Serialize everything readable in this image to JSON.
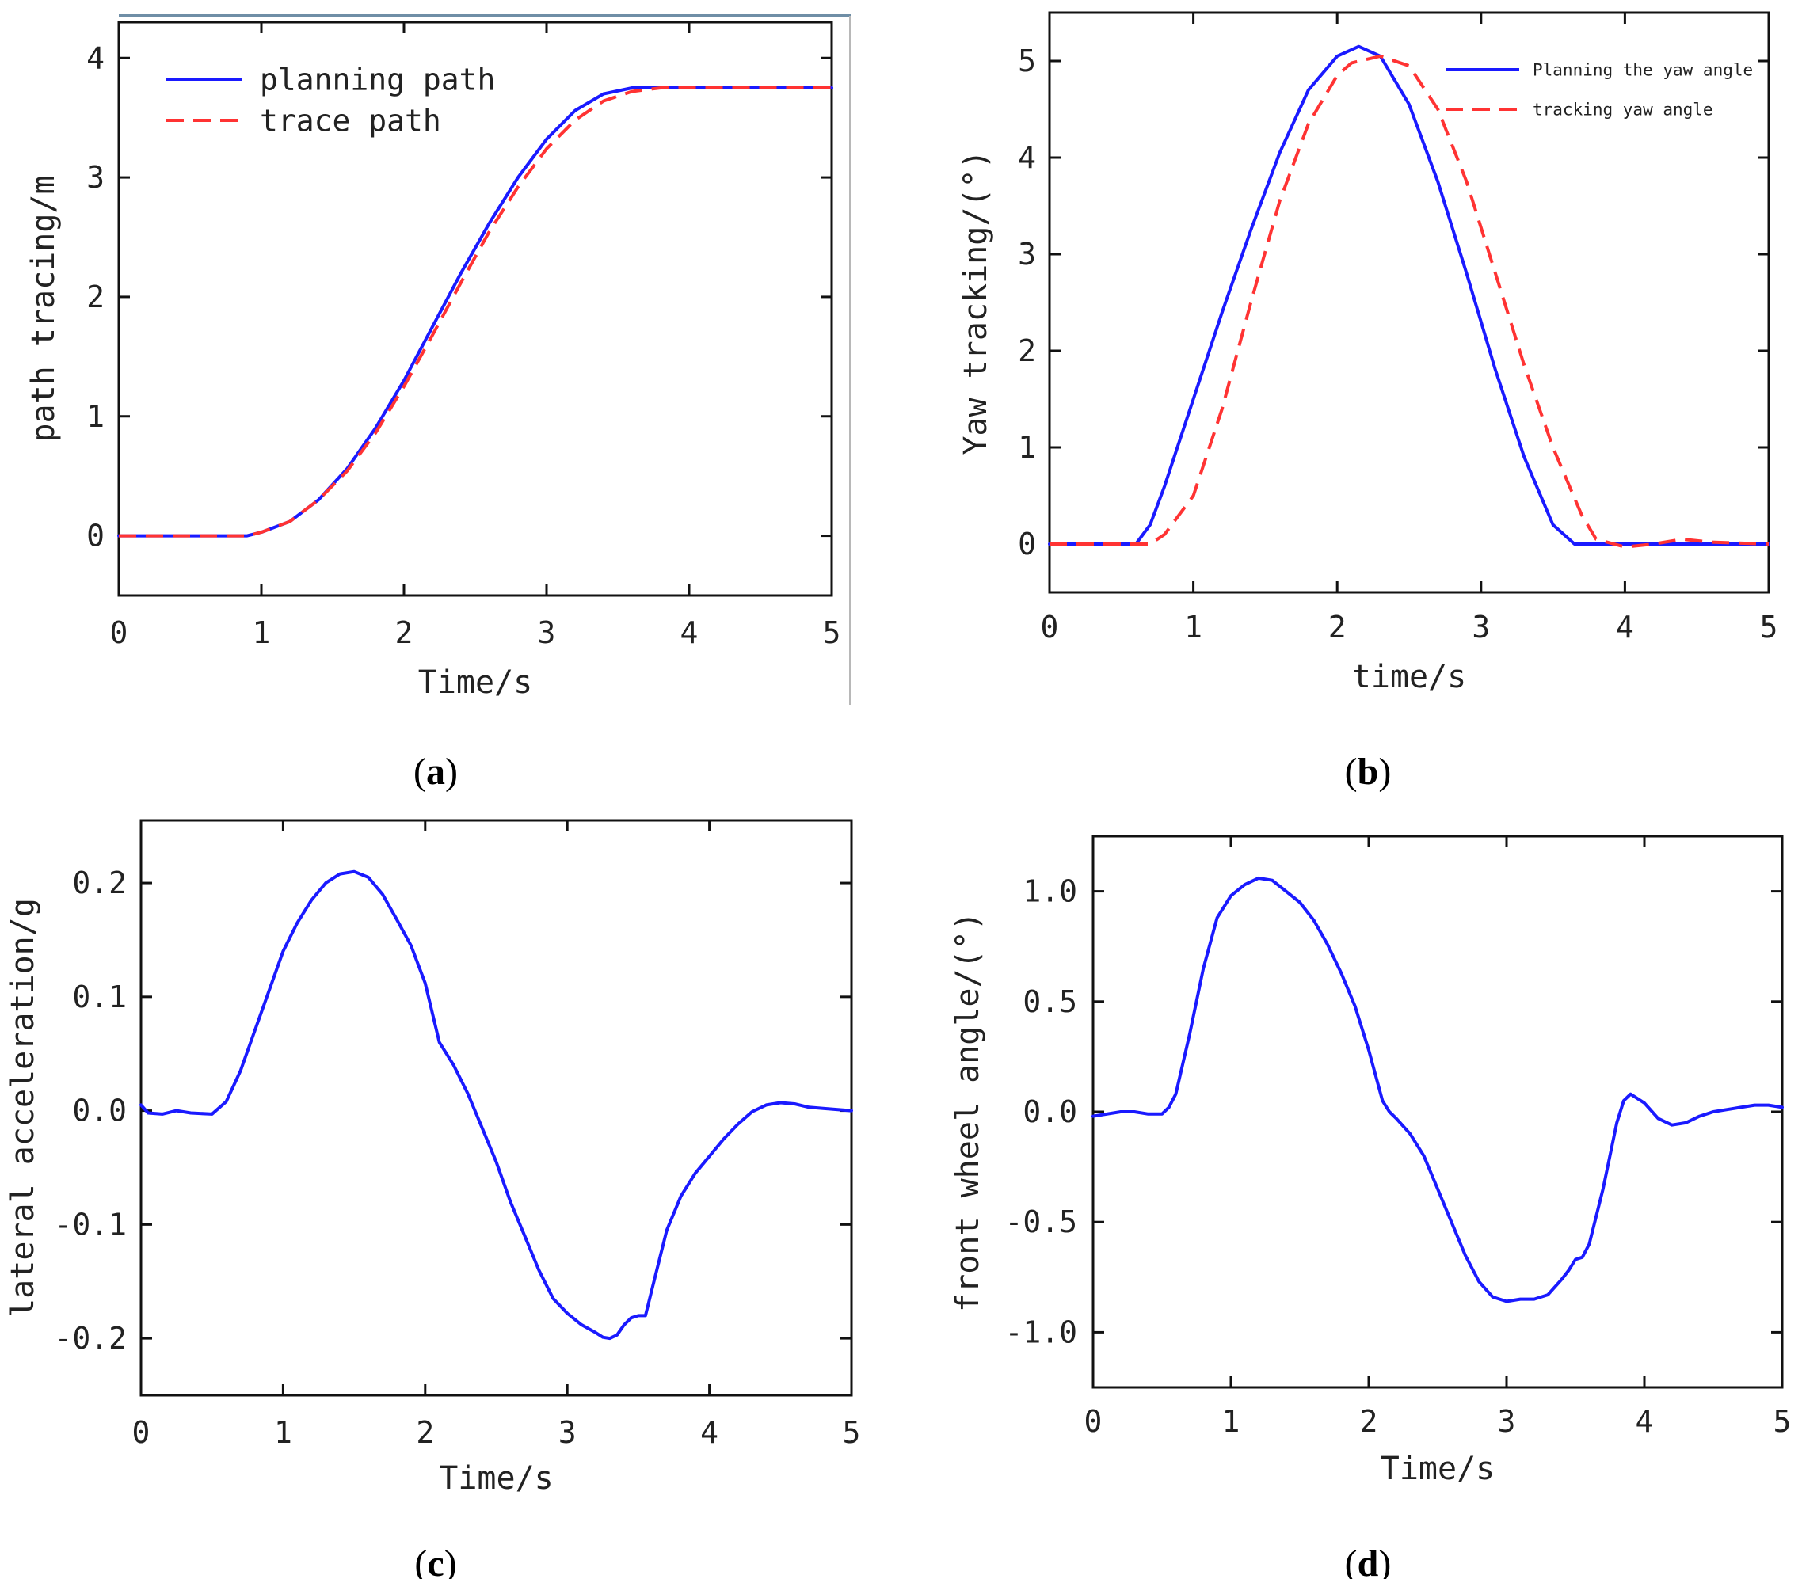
{
  "figure": {
    "colors": {
      "planning": "#1a1aff",
      "trace": "#ff3333",
      "axis": "#111111"
    },
    "panels": [
      {
        "id": "a",
        "caption_letter": "a",
        "chart_data": {
          "type": "line",
          "title": "",
          "xlabel": "Time/s",
          "ylabel": "path tracing/m",
          "xlim": [
            0,
            5
          ],
          "ylim": [
            -0.5,
            4.3
          ],
          "xticks": [
            0,
            1,
            2,
            3,
            4,
            5
          ],
          "yticks": [
            0,
            1,
            2,
            3,
            4
          ],
          "x_tick_labels": [
            "0",
            "1",
            "2",
            "3",
            "4",
            "5"
          ],
          "y_tick_labels": [
            "0",
            "1",
            "2",
            "3",
            "4"
          ],
          "legend": "top-left",
          "series": [
            {
              "name": "planning path",
              "style": "solid",
              "color": "#1a1aff",
              "x": [
                0,
                0.5,
                0.9,
                1.0,
                1.2,
                1.4,
                1.6,
                1.8,
                2.0,
                2.2,
                2.4,
                2.6,
                2.8,
                3.0,
                3.2,
                3.4,
                3.6,
                3.8,
                4.0,
                4.5,
                5.0
              ],
              "y": [
                0,
                0,
                0,
                0.03,
                0.12,
                0.3,
                0.56,
                0.9,
                1.3,
                1.75,
                2.2,
                2.62,
                3.0,
                3.32,
                3.56,
                3.7,
                3.75,
                3.75,
                3.75,
                3.75,
                3.75
              ]
            },
            {
              "name": "trace path",
              "style": "dashed",
              "color": "#ff3333",
              "x": [
                0,
                0.5,
                0.9,
                1.0,
                1.2,
                1.4,
                1.6,
                1.8,
                2.0,
                2.2,
                2.4,
                2.6,
                2.8,
                3.0,
                3.2,
                3.4,
                3.6,
                3.8,
                4.0,
                4.5,
                5.0
              ],
              "y": [
                0,
                0,
                0,
                0.03,
                0.12,
                0.3,
                0.54,
                0.86,
                1.25,
                1.68,
                2.12,
                2.55,
                2.92,
                3.24,
                3.48,
                3.64,
                3.72,
                3.75,
                3.75,
                3.75,
                3.75
              ]
            }
          ]
        }
      },
      {
        "id": "b",
        "caption_letter": "b",
        "chart_data": {
          "type": "line",
          "title": "",
          "xlabel": "time/s",
          "ylabel": "Yaw tracking/(°)",
          "xlim": [
            0,
            5
          ],
          "ylim": [
            -0.5,
            5.5
          ],
          "xticks": [
            0,
            1,
            2,
            3,
            4,
            5
          ],
          "yticks": [
            0,
            1,
            2,
            3,
            4,
            5
          ],
          "x_tick_labels": [
            "0",
            "1",
            "2",
            "3",
            "4",
            "5"
          ],
          "y_tick_labels": [
            "0",
            "1",
            "2",
            "3",
            "4",
            "5"
          ],
          "legend": "top-right",
          "series": [
            {
              "name": "Planning the yaw angle",
              "style": "solid",
              "color": "#1a1aff",
              "x": [
                0,
                0.6,
                0.7,
                0.8,
                1.0,
                1.2,
                1.4,
                1.6,
                1.8,
                2.0,
                2.15,
                2.3,
                2.5,
                2.7,
                2.9,
                3.1,
                3.3,
                3.5,
                3.65,
                3.7,
                4.0,
                4.5,
                5.0
              ],
              "y": [
                0,
                0,
                0.2,
                0.6,
                1.5,
                2.4,
                3.25,
                4.05,
                4.7,
                5.05,
                5.15,
                5.05,
                4.55,
                3.75,
                2.8,
                1.8,
                0.9,
                0.2,
                0.0,
                0,
                0,
                0,
                0
              ]
            },
            {
              "name": "tracking yaw angle",
              "style": "dashed",
              "color": "#ff3333",
              "x": [
                0,
                0.7,
                0.8,
                1.0,
                1.2,
                1.4,
                1.6,
                1.8,
                2.0,
                2.1,
                2.3,
                2.5,
                2.7,
                2.9,
                3.1,
                3.3,
                3.5,
                3.7,
                3.8,
                4.0,
                4.2,
                4.4,
                4.6,
                5.0
              ],
              "y": [
                0,
                0,
                0.1,
                0.5,
                1.4,
                2.5,
                3.55,
                4.35,
                4.85,
                4.98,
                5.05,
                4.95,
                4.5,
                3.75,
                2.8,
                1.85,
                1.0,
                0.3,
                0.05,
                -0.03,
                0.0,
                0.05,
                0.02,
                0
              ]
            }
          ]
        }
      },
      {
        "id": "c",
        "caption_letter": "c",
        "chart_data": {
          "type": "line",
          "title": "",
          "xlabel": "Time/s",
          "ylabel": "lateral acceleration/g",
          "xlim": [
            0,
            5
          ],
          "ylim": [
            -0.25,
            0.255
          ],
          "xticks": [
            0,
            1,
            2,
            3,
            4,
            5
          ],
          "yticks": [
            -0.2,
            -0.1,
            0.0,
            0.1,
            0.2
          ],
          "x_tick_labels": [
            "0",
            "1",
            "2",
            "3",
            "4",
            "5"
          ],
          "y_tick_labels": [
            "-0.2",
            "-0.1",
            "0.0",
            "0.1",
            "0.2"
          ],
          "legend": "none",
          "series": [
            {
              "name": "lateral acceleration",
              "style": "solid",
              "color": "#1a1aff",
              "x": [
                0,
                0.05,
                0.15,
                0.25,
                0.35,
                0.5,
                0.6,
                0.7,
                0.8,
                0.9,
                1.0,
                1.1,
                1.2,
                1.3,
                1.4,
                1.5,
                1.6,
                1.7,
                1.8,
                1.9,
                2.0,
                2.1,
                2.2,
                2.3,
                2.4,
                2.5,
                2.6,
                2.7,
                2.8,
                2.9,
                3.0,
                3.1,
                3.2,
                3.25,
                3.3,
                3.35,
                3.4,
                3.45,
                3.5,
                3.55,
                3.6,
                3.7,
                3.8,
                3.9,
                4.0,
                4.1,
                4.2,
                4.3,
                4.4,
                4.5,
                4.6,
                4.7,
                4.8,
                5.0
              ],
              "y": [
                0.005,
                -0.002,
                -0.003,
                0.0,
                -0.002,
                -0.003,
                0.008,
                0.035,
                0.07,
                0.105,
                0.14,
                0.165,
                0.185,
                0.2,
                0.208,
                0.21,
                0.205,
                0.19,
                0.168,
                0.145,
                0.112,
                0.06,
                0.04,
                0.015,
                -0.015,
                -0.045,
                -0.08,
                -0.11,
                -0.14,
                -0.165,
                -0.178,
                -0.188,
                -0.195,
                -0.199,
                -0.2,
                -0.197,
                -0.188,
                -0.182,
                -0.18,
                -0.18,
                -0.155,
                -0.105,
                -0.075,
                -0.055,
                -0.04,
                -0.025,
                -0.012,
                -0.001,
                0.005,
                0.007,
                0.006,
                0.003,
                0.002,
                0.0
              ]
            }
          ]
        }
      },
      {
        "id": "d",
        "caption_letter": "d",
        "chart_data": {
          "type": "line",
          "title": "",
          "xlabel": "Time/s",
          "ylabel": "front wheel angle/(°)",
          "xlim": [
            0,
            5
          ],
          "ylim": [
            -1.25,
            1.25
          ],
          "xticks": [
            0,
            1,
            2,
            3,
            4,
            5
          ],
          "yticks": [
            -1.0,
            -0.5,
            0.0,
            0.5,
            1.0
          ],
          "x_tick_labels": [
            "0",
            "1",
            "2",
            "3",
            "4",
            "5"
          ],
          "y_tick_labels": [
            "-1.0",
            "-0.5",
            "0.0",
            "0.5",
            "1.0"
          ],
          "legend": "none",
          "series": [
            {
              "name": "front wheel angle",
              "style": "solid",
              "color": "#1a1aff",
              "x": [
                0,
                0.1,
                0.2,
                0.3,
                0.4,
                0.5,
                0.55,
                0.6,
                0.7,
                0.8,
                0.9,
                1.0,
                1.1,
                1.2,
                1.3,
                1.4,
                1.5,
                1.6,
                1.7,
                1.8,
                1.9,
                2.0,
                2.1,
                2.15,
                2.2,
                2.3,
                2.4,
                2.5,
                2.6,
                2.7,
                2.8,
                2.9,
                3.0,
                3.1,
                3.2,
                3.3,
                3.4,
                3.45,
                3.5,
                3.55,
                3.6,
                3.7,
                3.8,
                3.85,
                3.9,
                4.0,
                4.1,
                4.2,
                4.3,
                4.4,
                4.5,
                4.6,
                4.7,
                4.8,
                4.9,
                5.0
              ],
              "y": [
                -0.02,
                -0.01,
                0.0,
                0.0,
                -0.01,
                -0.01,
                0.02,
                0.08,
                0.35,
                0.65,
                0.88,
                0.98,
                1.03,
                1.06,
                1.05,
                1.0,
                0.95,
                0.87,
                0.76,
                0.63,
                0.48,
                0.28,
                0.05,
                0.0,
                -0.03,
                -0.1,
                -0.2,
                -0.35,
                -0.5,
                -0.65,
                -0.77,
                -0.84,
                -0.86,
                -0.85,
                -0.85,
                -0.83,
                -0.76,
                -0.72,
                -0.67,
                -0.66,
                -0.6,
                -0.35,
                -0.05,
                0.05,
                0.08,
                0.04,
                -0.03,
                -0.06,
                -0.05,
                -0.02,
                0.0,
                0.01,
                0.02,
                0.03,
                0.03,
                0.02
              ]
            }
          ]
        }
      }
    ]
  }
}
